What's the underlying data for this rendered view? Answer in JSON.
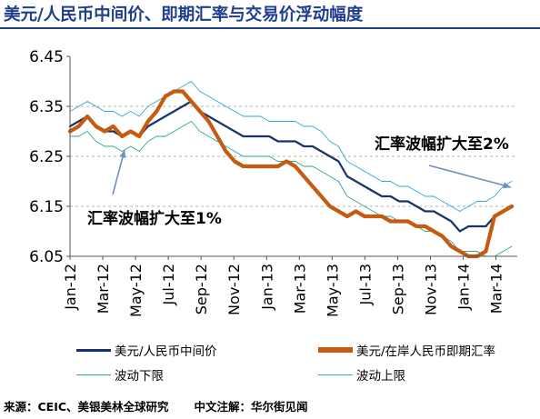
{
  "source": {
    "left": "来源：CEIC、美银美林全球研究",
    "right": "中文注解：华尔街见闻"
  },
  "chart_data": {
    "type": "line",
    "title": "美元/人民币中间价、即期汇率与交易价浮动幅度",
    "ylim": [
      6.05,
      6.45
    ],
    "yticks": [
      "6.45",
      "6.35",
      "6.25",
      "6.15",
      "6.05"
    ],
    "xticks": [
      "Jan-12",
      "Mar-12",
      "May-12",
      "Jul-12",
      "Sep-12",
      "Nov-12",
      "Jan-13",
      "Mar-13",
      "May-13",
      "Jul-13",
      "Sep-13",
      "Nov-13",
      "Jan-14",
      "Mar-14"
    ],
    "annotations": [
      "汇率波幅扩大至1%",
      "汇率波幅扩大至2%"
    ],
    "legend_position": "bottom",
    "colors": {
      "mid": "#17336b",
      "spot": "#c55a11",
      "lower": "#2aa58f",
      "upper": "#2ea6d8"
    },
    "series": [
      {
        "name": "美元/人民币中间价",
        "key": "mid",
        "values": [
          6.31,
          6.32,
          6.33,
          6.31,
          6.3,
          6.3,
          6.29,
          6.3,
          6.29,
          6.31,
          6.32,
          6.33,
          6.34,
          6.35,
          6.36,
          6.34,
          6.33,
          6.32,
          6.31,
          6.3,
          6.29,
          6.29,
          6.29,
          6.29,
          6.28,
          6.28,
          6.28,
          6.27,
          6.27,
          6.26,
          6.25,
          6.24,
          6.21,
          6.2,
          6.19,
          6.18,
          6.17,
          6.17,
          6.16,
          6.16,
          6.15,
          6.14,
          6.14,
          6.13,
          6.12,
          6.1,
          6.11,
          6.11,
          6.11,
          6.13,
          6.14,
          6.15
        ]
      },
      {
        "name": "美元/在岸人民币即期汇率",
        "key": "spot",
        "values": [
          6.3,
          6.31,
          6.33,
          6.31,
          6.3,
          6.31,
          6.29,
          6.3,
          6.29,
          6.32,
          6.34,
          6.37,
          6.38,
          6.38,
          6.36,
          6.34,
          6.32,
          6.29,
          6.26,
          6.24,
          6.23,
          6.23,
          6.23,
          6.23,
          6.23,
          6.24,
          6.23,
          6.21,
          6.19,
          6.17,
          6.15,
          6.14,
          6.13,
          6.14,
          6.13,
          6.13,
          6.13,
          6.12,
          6.12,
          6.12,
          6.11,
          6.11,
          6.1,
          6.09,
          6.07,
          6.06,
          6.05,
          6.05,
          6.06,
          6.13,
          6.14,
          6.15
        ]
      },
      {
        "name": "波动下限",
        "key": "lower",
        "values": [
          6.29,
          6.29,
          6.3,
          6.28,
          6.27,
          6.27,
          6.26,
          6.27,
          6.26,
          6.28,
          6.29,
          6.29,
          6.3,
          6.31,
          6.32,
          6.3,
          6.29,
          6.28,
          6.27,
          6.26,
          6.25,
          6.25,
          6.25,
          6.25,
          6.24,
          6.24,
          6.24,
          6.23,
          6.23,
          6.22,
          6.21,
          6.2,
          6.17,
          6.16,
          6.15,
          6.14,
          6.13,
          6.13,
          6.12,
          6.12,
          6.11,
          6.1,
          6.1,
          6.09,
          6.08,
          6.06,
          6.06,
          6.06,
          6.05,
          6.05,
          6.06,
          6.07
        ]
      },
      {
        "name": "波动上限",
        "key": "upper",
        "values": [
          6.34,
          6.35,
          6.36,
          6.35,
          6.34,
          6.34,
          6.33,
          6.34,
          6.33,
          6.35,
          6.36,
          6.37,
          6.38,
          6.39,
          6.4,
          6.38,
          6.37,
          6.36,
          6.35,
          6.34,
          6.33,
          6.33,
          6.33,
          6.32,
          6.32,
          6.32,
          6.32,
          6.31,
          6.31,
          6.3,
          6.28,
          6.27,
          6.24,
          6.23,
          6.22,
          6.21,
          6.2,
          6.2,
          6.19,
          6.19,
          6.18,
          6.17,
          6.17,
          6.16,
          6.15,
          6.14,
          6.15,
          6.16,
          6.16,
          6.17,
          6.19,
          6.2
        ]
      }
    ]
  }
}
